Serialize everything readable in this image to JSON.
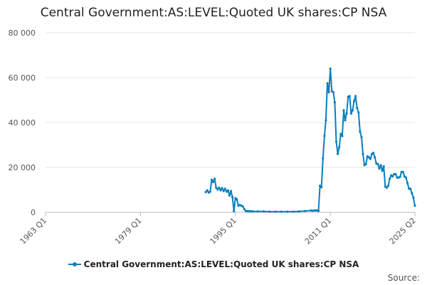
{
  "chart_data": {
    "type": "line",
    "title": "Central Government:AS:LEVEL:Quoted UK shares:CP NSA",
    "xlabel": "",
    "ylabel": "",
    "x_start": "1963 Q1",
    "x_end": "2025 Q2",
    "x_ticks": [
      "1963 Q1",
      "1979 Q1",
      "1995 Q1",
      "2011 Q1",
      "2025 Q2"
    ],
    "ylim": [
      0,
      80000
    ],
    "y_ticks": [
      0,
      20000,
      40000,
      60000,
      80000
    ],
    "y_tick_labels": [
      "0",
      "20 000",
      "40 000",
      "60 000",
      "80 000"
    ],
    "grid": "horizontal",
    "legend_position": "bottom",
    "color": "#0b7fbd",
    "series": [
      {
        "name": "Central Government:AS:LEVEL:Quoted UK shares:CP NSA",
        "x": [
          "1990 Q1",
          "1990 Q2",
          "1990 Q3",
          "1990 Q4",
          "1991 Q1",
          "1991 Q2",
          "1991 Q3",
          "1991 Q4",
          "1992 Q1",
          "1992 Q2",
          "1992 Q3",
          "1992 Q4",
          "1993 Q1",
          "1993 Q2",
          "1993 Q3",
          "1993 Q4",
          "1994 Q1",
          "1994 Q2",
          "1994 Q3",
          "1994 Q4",
          "1995 Q1",
          "1995 Q2",
          "1995 Q3",
          "1995 Q4",
          "1996 Q1",
          "1996 Q2",
          "1996 Q3",
          "1996 Q4",
          "1997 Q1",
          "1997 Q2",
          "1997 Q3",
          "1997 Q4",
          "1998 Q1",
          "1998 Q4",
          "1999 Q4",
          "2000 Q4",
          "2001 Q4",
          "2002 Q4",
          "2003 Q4",
          "2004 Q4",
          "2005 Q4",
          "2006 Q4",
          "2007 Q4",
          "2008 Q1",
          "2008 Q2",
          "2008 Q3",
          "2008 Q4",
          "2009 Q1",
          "2009 Q2",
          "2009 Q3",
          "2009 Q4",
          "2010 Q1",
          "2010 Q2",
          "2010 Q3",
          "2010 Q4",
          "2011 Q1",
          "2011 Q2",
          "2011 Q3",
          "2011 Q4",
          "2012 Q1",
          "2012 Q2",
          "2012 Q3",
          "2012 Q4",
          "2013 Q1",
          "2013 Q2",
          "2013 Q3",
          "2013 Q4",
          "2014 Q1",
          "2014 Q2",
          "2014 Q3",
          "2014 Q4",
          "2015 Q1",
          "2015 Q2",
          "2015 Q3",
          "2015 Q4",
          "2016 Q1",
          "2016 Q2",
          "2016 Q3",
          "2016 Q4",
          "2017 Q1",
          "2017 Q2",
          "2017 Q3",
          "2017 Q4",
          "2018 Q1",
          "2018 Q2",
          "2018 Q3",
          "2018 Q4",
          "2019 Q1",
          "2019 Q2",
          "2019 Q3",
          "2019 Q4",
          "2020 Q1",
          "2020 Q2",
          "2020 Q3",
          "2020 Q4",
          "2021 Q1",
          "2021 Q2",
          "2021 Q3",
          "2021 Q4",
          "2022 Q1",
          "2022 Q2",
          "2022 Q3",
          "2022 Q4",
          "2023 Q1",
          "2023 Q2",
          "2023 Q3",
          "2023 Q4",
          "2024 Q1",
          "2024 Q2",
          "2024 Q3",
          "2024 Q4",
          "2025 Q1",
          "2025 Q2"
        ],
        "values": [
          9000,
          9800,
          8800,
          9200,
          14500,
          13500,
          15000,
          11000,
          10200,
          11000,
          9800,
          10800,
          9500,
          10500,
          9200,
          9800,
          7500,
          9500,
          6800,
          500,
          6300,
          5800,
          3000,
          3200,
          3000,
          2600,
          1400,
          600,
          500,
          500,
          500,
          400,
          400,
          400,
          400,
          300,
          300,
          300,
          300,
          300,
          400,
          600,
          800,
          700,
          800,
          900,
          800,
          600,
          11800,
          11200,
          24000,
          34000,
          41000,
          57500,
          53500,
          64000,
          54000,
          53500,
          49000,
          31500,
          26000,
          29000,
          35000,
          34000,
          45500,
          41000,
          44000,
          51500,
          51800,
          44000,
          45500,
          49500,
          51800,
          46500,
          44500,
          36000,
          33500,
          26000,
          21000,
          21500,
          25000,
          24500,
          23800,
          26000,
          26500,
          24500,
          21800,
          21500,
          19500,
          21000,
          18500,
          20500,
          11500,
          11000,
          11800,
          15000,
          16500,
          16000,
          17000,
          17000,
          15500,
          15500,
          15800,
          18000,
          18000,
          16000,
          15500,
          13000,
          10500,
          10500,
          8500,
          6500,
          3000
        ]
      }
    ]
  },
  "footer": {
    "source_label": "Source:"
  }
}
